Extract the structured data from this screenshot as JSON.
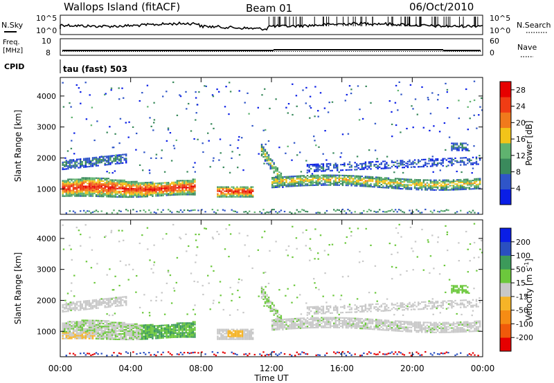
{
  "header": {
    "station": "Wallops Island (fitACF)",
    "beam": "Beam 01",
    "date": "06/Oct/2010"
  },
  "top_panels": {
    "nsky_label": "N.Sky",
    "nsearch_label": "N.Search",
    "log_top_tick": "10^5",
    "log_bottom_tick": "10^0",
    "freq_label_line1": "Freq.",
    "freq_label_line2": "[MHz]",
    "freq_ticks": [
      "10",
      "8"
    ],
    "nave_label": "Nave",
    "nave_ticks": [
      "60",
      "0"
    ],
    "cpid_label": "CPID",
    "cpid_text": "tau (fast) 503"
  },
  "colors": {
    "power_scale": [
      "#0a1ee6",
      "#2f55c8",
      "#3a8a5c",
      "#5fb36f",
      "#f2c419",
      "#f07a1c",
      "#f03c14",
      "#e60000"
    ],
    "velocity_scale": [
      "#e60000",
      "#f05a0a",
      "#f58c14",
      "#f5b428",
      "#c8c8c8",
      "#6cc83c",
      "#3c9a5a",
      "#2a4fc0",
      "#0a1ee6"
    ]
  },
  "chart_data": [
    {
      "type": "heatmap",
      "title": "",
      "xlabel": "Time UT",
      "ylabel": "Slant Range [km]",
      "colorbar_label": "Power [dB]",
      "x_ticks": [
        "00:00",
        "04:00",
        "08:00",
        "12:00",
        "16:00",
        "20:00",
        "00:00"
      ],
      "y_ticks": [
        1000,
        2000,
        3000,
        4000
      ],
      "xlim_hours": [
        0,
        24
      ],
      "ylim_km": [
        180,
        4600
      ],
      "colorbar_ticks": [
        4,
        8,
        12,
        16,
        20,
        24,
        28
      ],
      "colorbar_range": [
        0,
        30
      ],
      "features": [
        {
          "name": "main band",
          "t_start": 0.0,
          "t_end": 7.5,
          "range_center_km": 1050,
          "value": 26
        },
        {
          "name": "afternoon patch",
          "t_start": 9.0,
          "t_end": 10.8,
          "range_center_km": 950,
          "value": 27
        },
        {
          "name": "post-midnight band",
          "t_start": 12.0,
          "t_end": 23.9,
          "range_center_km": 1250,
          "value": 18
        },
        {
          "name": "upper band",
          "t_start": 0.0,
          "t_end": 4.0,
          "range_center_km": 1950,
          "value": 9
        }
      ]
    },
    {
      "type": "heatmap",
      "title": "",
      "xlabel": "Time UT",
      "ylabel": "Slant Range [km]",
      "colorbar_label": "Velocity [m s^-1]",
      "x_ticks": [
        "00:00",
        "04:00",
        "08:00",
        "12:00",
        "16:00",
        "20:00",
        "00:00"
      ],
      "y_ticks": [
        1000,
        2000,
        3000,
        4000
      ],
      "xlim_hours": [
        0,
        24
      ],
      "ylim_km": [
        180,
        4600
      ],
      "colorbar_ticks": [
        -200,
        -100,
        -50,
        -15,
        15,
        50,
        100,
        200
      ],
      "colorbar_range": [
        -250,
        250
      ]
    }
  ]
}
